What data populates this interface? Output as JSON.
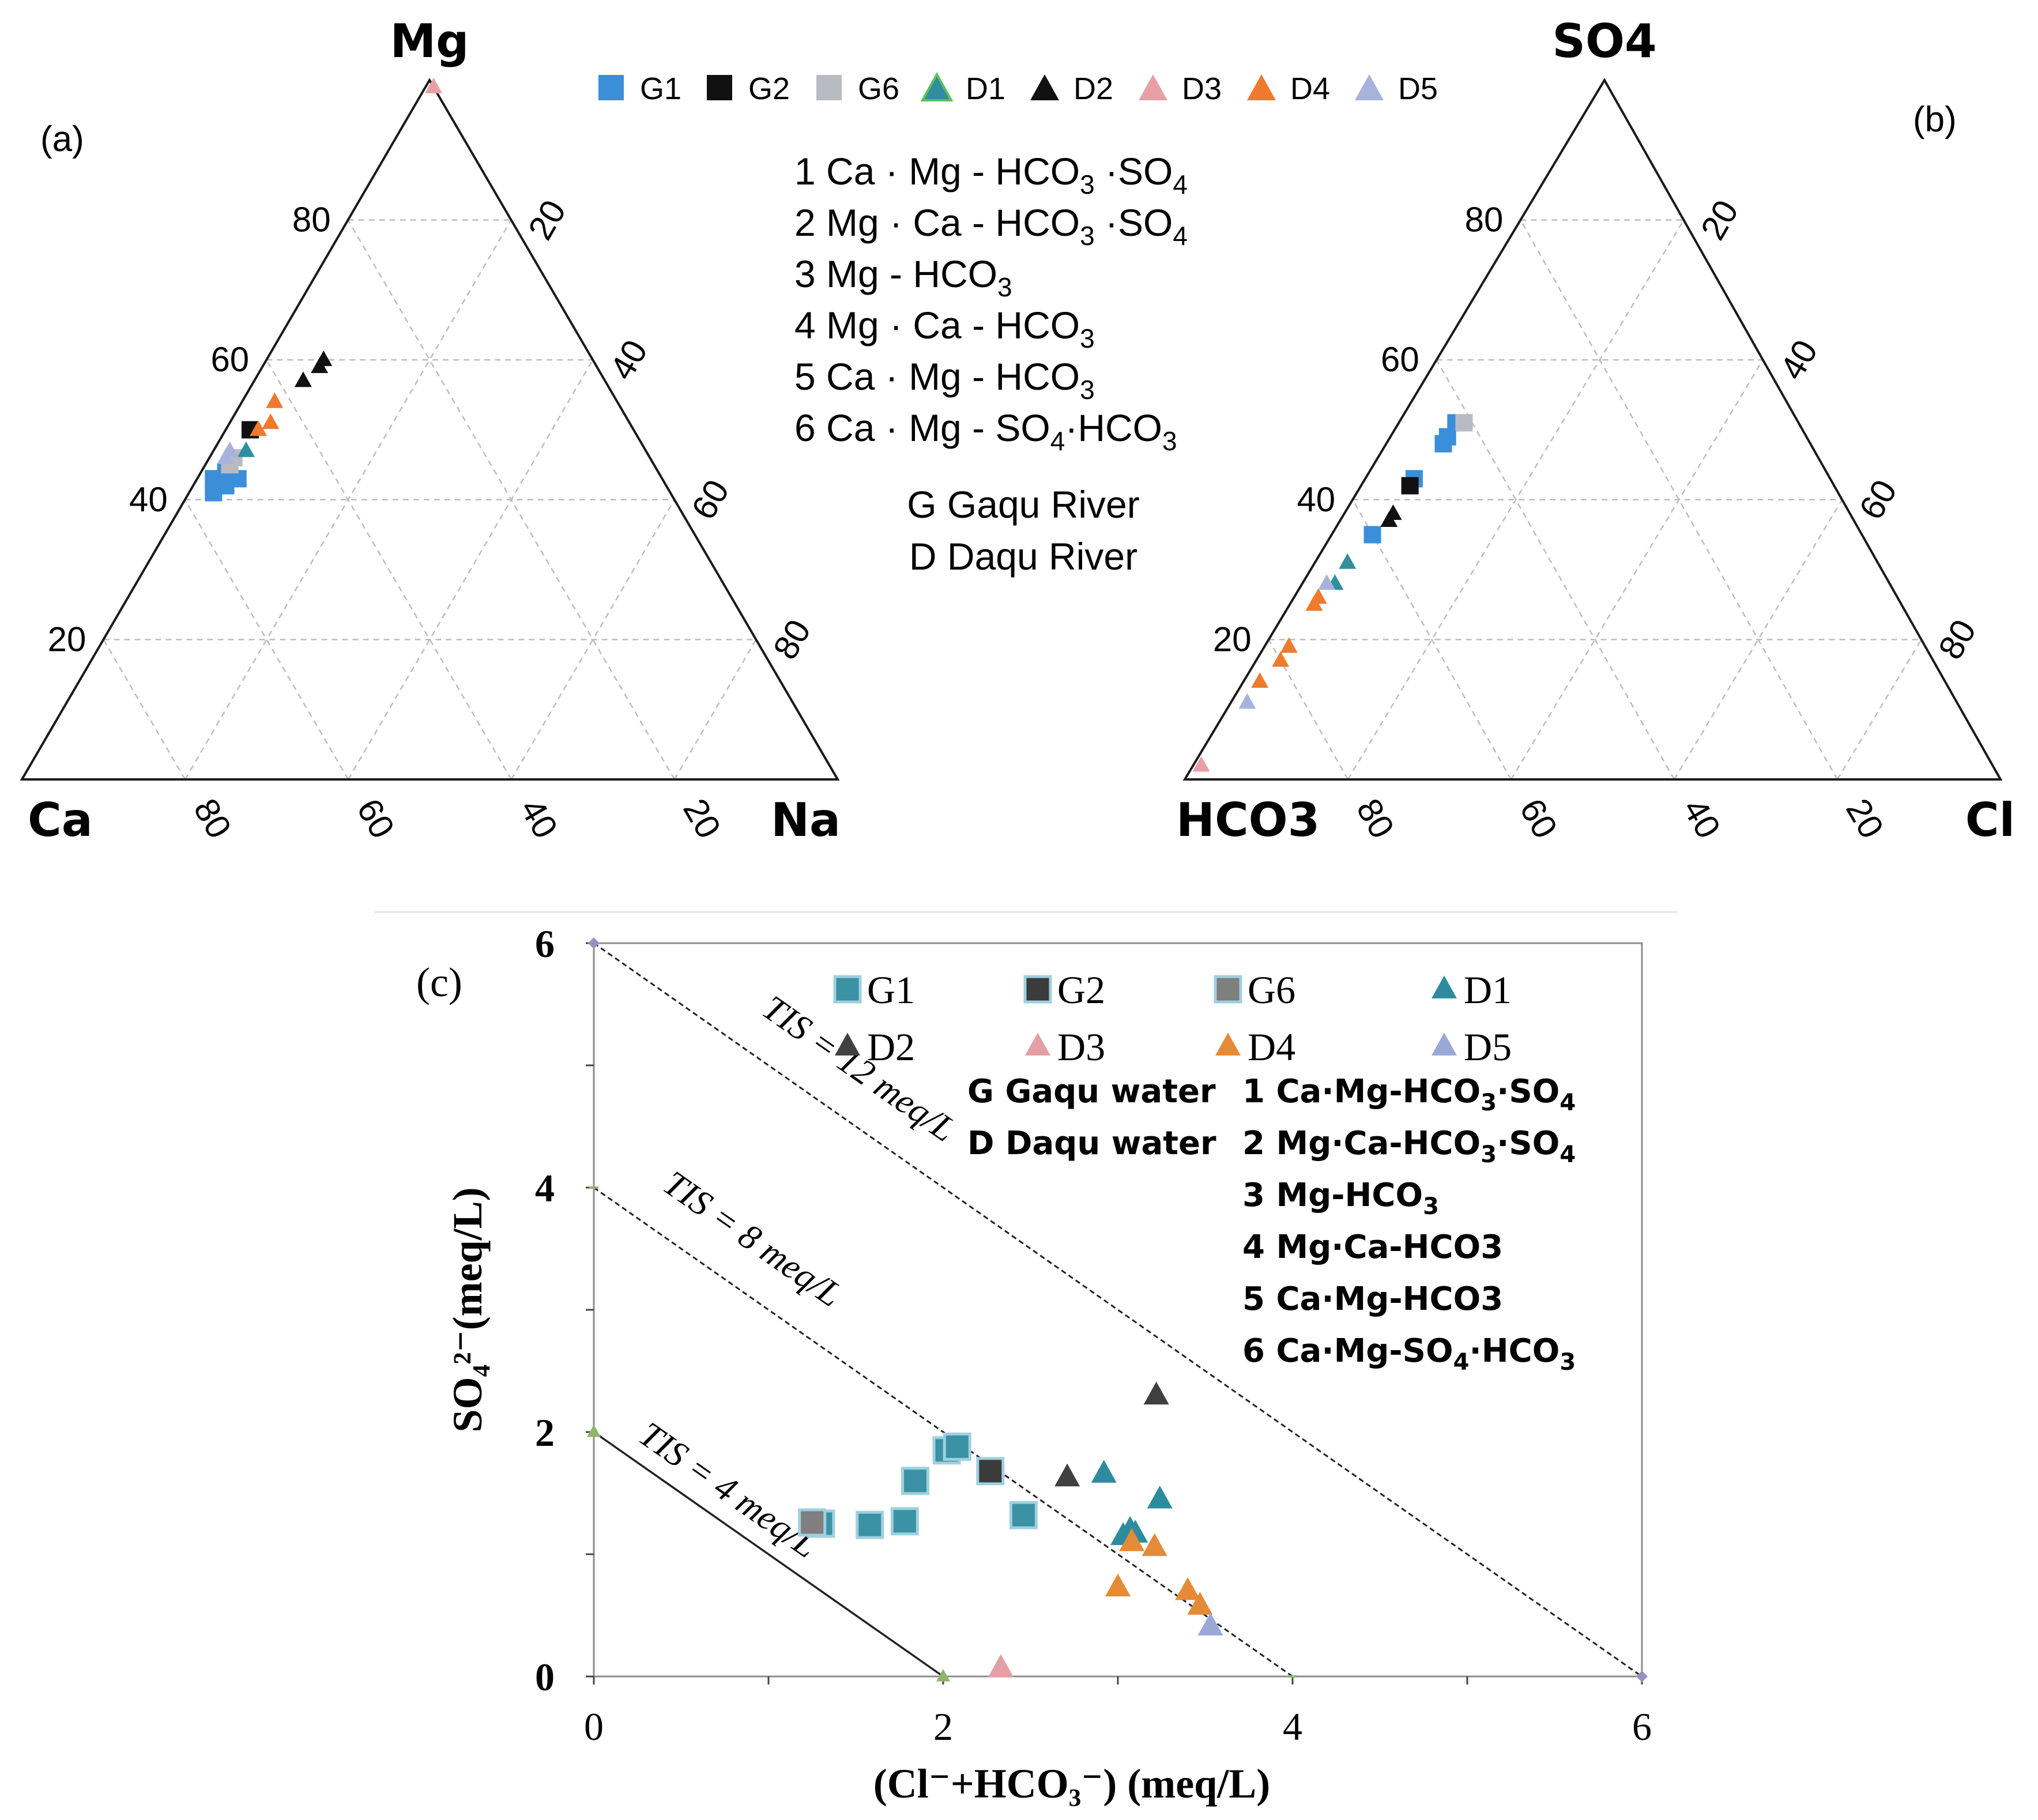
{
  "figure": {
    "panel_a_label": "(a)",
    "panel_b_label": "(b)",
    "panel_c_label": "(c)"
  },
  "ternary_legend": [
    {
      "name": "G1",
      "marker": "square",
      "color": "#3b8fd9"
    },
    {
      "name": "G2",
      "marker": "square",
      "color": "#111111"
    },
    {
      "name": "G6",
      "marker": "square",
      "color": "#b8bcc2"
    },
    {
      "name": "D1",
      "marker": "triangle",
      "color": "#2f8f9f"
    },
    {
      "name": "D2",
      "marker": "triangle",
      "color": "#111111"
    },
    {
      "name": "D3",
      "marker": "triangle",
      "color": "#e8a0a6"
    },
    {
      "name": "D4",
      "marker": "triangle",
      "color": "#ef7a2e"
    },
    {
      "name": "D5",
      "marker": "triangle",
      "color": "#a7b3da"
    }
  ],
  "ternary_notes": {
    "types": [
      {
        "num": "1",
        "main": "Ca · Mg - HCO",
        "sub1": "3",
        "mid": " ·SO",
        "sub2": "4"
      },
      {
        "num": "2",
        "main": "Mg · Ca - HCO",
        "sub1": "3",
        "mid": " ·SO",
        "sub2": "4"
      },
      {
        "num": "3",
        "main": "Mg - HCO",
        "sub1": "3",
        "mid": "",
        "sub2": ""
      },
      {
        "num": "4",
        "main": "Mg · Ca - HCO",
        "sub1": "3",
        "mid": "",
        "sub2": ""
      },
      {
        "num": "5",
        "main": "Ca · Mg - HCO",
        "sub1": "3",
        "mid": "",
        "sub2": ""
      },
      {
        "num": "6",
        "main": "Ca · Mg - SO",
        "sub1": "4",
        "mid": "·HCO",
        "sub2": "3"
      }
    ],
    "rivers": [
      "G Gaqu River",
      "D Daqu River"
    ]
  },
  "chart_data": [
    {
      "type": "scatter",
      "subtype": "ternary",
      "panel": "(a)",
      "vertex_labels": {
        "top": "Mg",
        "left": "Ca",
        "right": "Na"
      },
      "left_axis_ticks": [
        "20",
        "40",
        "60",
        "80"
      ],
      "right_axis_ticks": [
        "20",
        "40",
        "60",
        "80"
      ],
      "bottom_axis_ticks": [
        "80",
        "60",
        "40",
        "20"
      ],
      "grid": true,
      "units": "% (Mg, Na); Ca = 100 - Mg - Na",
      "series": [
        {
          "name": "G1",
          "points": [
            [
              43,
              2
            ],
            [
              42,
              4
            ],
            [
              43,
              5
            ],
            [
              41,
              3
            ],
            [
              44,
              3
            ]
          ]
        },
        {
          "name": "G2",
          "points": [
            [
              50,
              3
            ]
          ]
        },
        {
          "name": "G6",
          "points": [
            [
              45,
              3
            ],
            [
              46,
              3
            ]
          ]
        },
        {
          "name": "D1",
          "points": [
            [
              47,
              4
            ]
          ]
        },
        {
          "name": "D2",
          "points": [
            [
              60,
              7
            ],
            [
              59,
              7
            ],
            [
              57,
              6
            ]
          ]
        },
        {
          "name": "D3",
          "points": [
            [
              99,
              1
            ]
          ]
        },
        {
          "name": "D4",
          "points": [
            [
              54,
              4
            ],
            [
              51,
              5
            ],
            [
              50,
              4
            ]
          ]
        },
        {
          "name": "D5",
          "points": [
            [
              47,
              2
            ],
            [
              46,
              2
            ]
          ]
        }
      ]
    },
    {
      "type": "scatter",
      "subtype": "ternary",
      "panel": "(b)",
      "vertex_labels": {
        "top": "SO4",
        "left": "HCO3",
        "right": "Cl"
      },
      "left_axis_ticks": [
        "20",
        "40",
        "60",
        "80"
      ],
      "right_axis_ticks": [
        "20",
        "40",
        "60",
        "80"
      ],
      "bottom_axis_ticks": [
        "80",
        "60",
        "40",
        "20"
      ],
      "grid": true,
      "units": "% (SO4, Cl); HCO3 = 100 - SO4 - Cl",
      "series": [
        {
          "name": "G1",
          "points": [
            [
              51,
              7
            ],
            [
              49,
              7
            ],
            [
              48,
              7
            ],
            [
              43,
              6
            ],
            [
              42,
              6
            ],
            [
              35,
              5
            ]
          ]
        },
        {
          "name": "G2",
          "points": [
            [
              42,
              6
            ]
          ]
        },
        {
          "name": "G6",
          "points": [
            [
              51,
              8
            ]
          ]
        },
        {
          "name": "D1",
          "points": [
            [
              31,
              4
            ],
            [
              28,
              4
            ]
          ]
        },
        {
          "name": "D2",
          "points": [
            [
              38,
              6
            ],
            [
              37,
              6
            ]
          ]
        },
        {
          "name": "D3",
          "points": [
            [
              2,
              1
            ]
          ]
        },
        {
          "name": "D4",
          "points": [
            [
              26,
              3
            ],
            [
              25,
              3
            ],
            [
              19,
              3
            ],
            [
              17,
              3
            ],
            [
              14,
              2
            ]
          ]
        },
        {
          "name": "D5",
          "points": [
            [
              28,
              3
            ],
            [
              11,
              2
            ]
          ]
        }
      ]
    },
    {
      "type": "scatter",
      "panel": "(c)",
      "xlabel": "(Cl⁻+HCO₃⁻) (meq/L)",
      "ylabel": "SO₄²⁻(meq/L)",
      "xlim": [
        0,
        6
      ],
      "ylim": [
        0,
        6
      ],
      "xticks": [
        "0",
        "2",
        "4",
        "6"
      ],
      "yticks": [
        "0",
        "2",
        "4",
        "6"
      ],
      "lines": [
        {
          "label": "TIS = 4 meq/L",
          "from": [
            0,
            2
          ],
          "to": [
            2,
            0
          ],
          "style": "solid"
        },
        {
          "label": "TIS = 8 meq/L",
          "from": [
            0,
            4
          ],
          "to": [
            4,
            0
          ],
          "style": "dashed"
        },
        {
          "label": "TIS = 12 meq/L",
          "from": [
            0,
            6
          ],
          "to": [
            6,
            0
          ],
          "style": "dashed"
        }
      ],
      "series": [
        {
          "name": "G1",
          "marker": "square",
          "color": "#3a92a4",
          "points": [
            [
              1.3,
              1.25
            ],
            [
              1.58,
              1.24
            ],
            [
              1.78,
              1.27
            ],
            [
              1.84,
              1.6
            ],
            [
              2.02,
              1.85
            ],
            [
              2.08,
              1.88
            ],
            [
              2.46,
              1.32
            ]
          ]
        },
        {
          "name": "G2",
          "marker": "square",
          "color": "#3b3b3b",
          "points": [
            [
              2.27,
              1.68
            ]
          ]
        },
        {
          "name": "G6",
          "marker": "square",
          "color": "#7f7f7f",
          "points": [
            [
              1.25,
              1.26
            ]
          ]
        },
        {
          "name": "D1",
          "marker": "triangle",
          "color": "#2e8b9f",
          "points": [
            [
              2.92,
              1.66
            ],
            [
              3.03,
              1.15
            ],
            [
              3.07,
              1.2
            ],
            [
              3.1,
              1.17
            ],
            [
              3.24,
              1.45
            ]
          ]
        },
        {
          "name": "D2",
          "marker": "triangle",
          "color": "#404040",
          "points": [
            [
              2.71,
              1.63
            ],
            [
              3.22,
              2.3
            ]
          ]
        },
        {
          "name": "D3",
          "marker": "triangle",
          "color": "#e3a0a4",
          "points": [
            [
              2.33,
              0.07
            ]
          ]
        },
        {
          "name": "D4",
          "marker": "triangle",
          "color": "#e58a36",
          "points": [
            [
              3.0,
              0.73
            ],
            [
              3.08,
              1.1
            ],
            [
              3.21,
              1.06
            ],
            [
              3.4,
              0.7
            ],
            [
              3.47,
              0.58
            ]
          ]
        },
        {
          "name": "D5",
          "marker": "triangle",
          "color": "#9aa8d6",
          "points": [
            [
              3.53,
              0.41
            ]
          ]
        }
      ],
      "legend": [
        "G1",
        "G2",
        "G6",
        "D1",
        "D2",
        "D3",
        "D4",
        "D5"
      ],
      "legend_position": "top-right",
      "notes_left": [
        "G Gaqu water",
        "D Daqu water"
      ],
      "notes_right": [
        {
          "num": "1",
          "main": "Ca·Mg-HCO",
          "sub1": "3",
          "mid": "·SO",
          "sub2": "4"
        },
        {
          "num": "2",
          "main": "Mg·Ca-HCO",
          "sub1": "3",
          "mid": "·SO",
          "sub2": "4"
        },
        {
          "num": "3",
          "main": "Mg-HCO",
          "sub1": "3",
          "mid": "",
          "sub2": ""
        },
        {
          "num": "4",
          "main": "Mg·Ca-HCO3",
          "sub1": "",
          "mid": "",
          "sub2": ""
        },
        {
          "num": "5",
          "main": "Ca·Mg-HCO3",
          "sub1": "",
          "mid": "",
          "sub2": ""
        },
        {
          "num": "6",
          "main": "Ca·Mg-SO",
          "sub1": "4",
          "mid": "·HCO",
          "sub2": "3"
        }
      ]
    }
  ]
}
